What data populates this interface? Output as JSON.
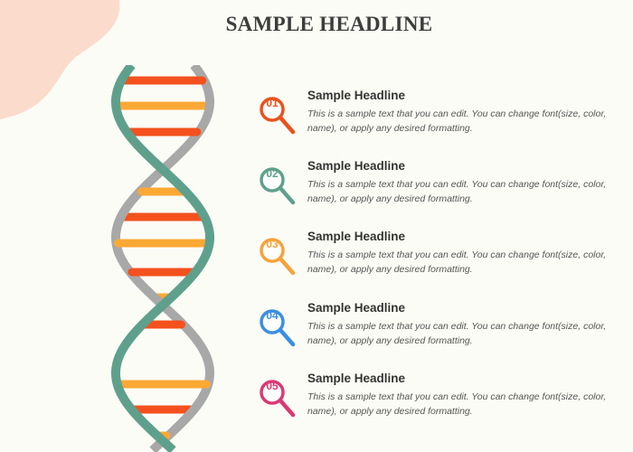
{
  "page": {
    "title": "SAMPLE HEADLINE"
  },
  "colors": {
    "background": "#fcfcf6",
    "blob": "#fbdccc",
    "strand_gray": "#a8a8a8",
    "strand_teal": "#5fa08d",
    "rung_red": "#f4511e",
    "rung_orange": "#fba834"
  },
  "items": [
    {
      "number": "01",
      "heading": "Sample Headline",
      "text": "This is a sample text that you can edit.  You can change font(size, color, name), or apply any desired formatting.",
      "color": "#e8531c",
      "icon": "magnifier-icon"
    },
    {
      "number": "02",
      "heading": "Sample Headline",
      "text": "This is a sample text that you can edit.  You can change font(size, color, name), or apply any desired formatting.",
      "color": "#5fa08d",
      "icon": "magnifier-icon"
    },
    {
      "number": "03",
      "heading": "Sample Headline",
      "text": "This is a sample text that you can edit.  You can change font(size, color, name), or apply any desired formatting.",
      "color": "#f5a33a",
      "icon": "magnifier-icon"
    },
    {
      "number": "04",
      "heading": "Sample Headline",
      "text": "This is a sample text that you can edit.  You can change font(size, color, name), or apply any desired formatting.",
      "color": "#3b8fe0",
      "icon": "magnifier-icon"
    },
    {
      "number": "05",
      "heading": "Sample Headline",
      "text": "This is a sample text that you can edit.  You can change font(size, color, name), or apply any desired formatting.",
      "color": "#d93a72",
      "icon": "magnifier-icon"
    }
  ]
}
